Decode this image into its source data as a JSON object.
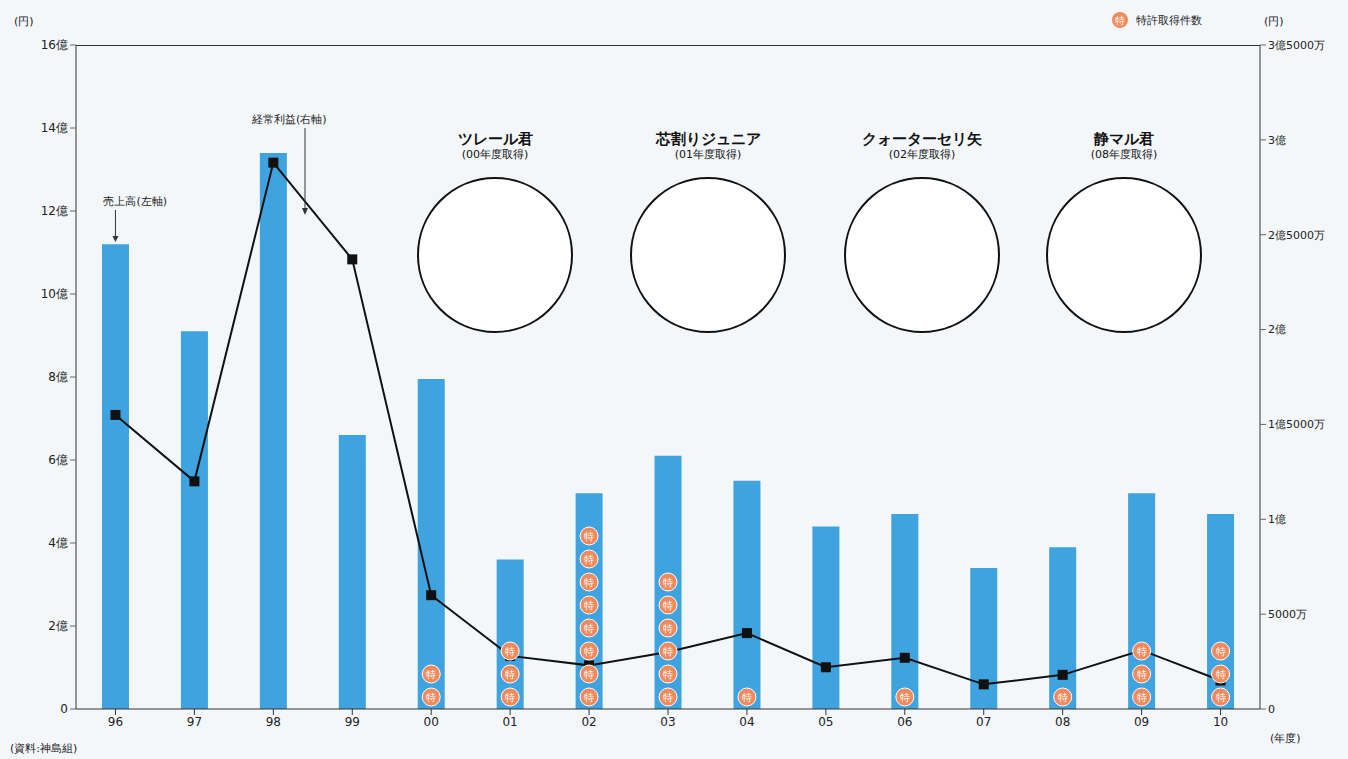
{
  "chart_data": {
    "type": "bar",
    "categories": [
      "96",
      "97",
      "98",
      "99",
      "00",
      "01",
      "02",
      "03",
      "04",
      "05",
      "06",
      "07",
      "08",
      "09",
      "10"
    ],
    "series": [
      {
        "name": "売上高(左軸)",
        "type": "bar",
        "color": "#3ea3de",
        "values": [
          1120000000,
          910000000,
          1340000000,
          660000000,
          795000000,
          360000000,
          520000000,
          610000000,
          550000000,
          440000000,
          470000000,
          340000000,
          390000000,
          520000000,
          470000000
        ]
      },
      {
        "name": "経常利益(右軸)",
        "type": "line",
        "axis": "y2",
        "color": "#111111",
        "marker": "square",
        "values": [
          155000000,
          120000000,
          288000000,
          237000000,
          60000000,
          28000000,
          23000000,
          30000000,
          40000000,
          22000000,
          27000000,
          13000000,
          18000000,
          31000000,
          15000000
        ]
      }
    ],
    "patents": {
      "name": "特許取得件数",
      "symbol": "特",
      "color": "#f08a5d",
      "values": [
        0,
        0,
        0,
        0,
        2,
        3,
        8,
        6,
        1,
        0,
        1,
        0,
        1,
        3,
        3
      ]
    },
    "products": [
      {
        "name": "ツレール君",
        "note": "(00年度取得)"
      },
      {
        "name": "芯割りジュニア",
        "note": "(01年度取得)"
      },
      {
        "name": "クォーターセリ矢",
        "note": "(02年度取得)"
      },
      {
        "name": "静マル君",
        "note": "(08年度取得)"
      }
    ],
    "ylim": [
      0,
      1600000000
    ],
    "yticks": [
      0,
      {
        "value": 200000000,
        "label": "2億"
      },
      {
        "value": 400000000,
        "label": "4億"
      },
      {
        "value": 600000000,
        "label": "6億"
      },
      {
        "value": 800000000,
        "label": "8億"
      },
      {
        "value": 1000000000,
        "label": "10億"
      },
      {
        "value": 1200000000,
        "label": "12億"
      },
      {
        "value": 1400000000,
        "label": "14億"
      },
      {
        "value": 1600000000,
        "label": "16億"
      }
    ],
    "y2lim": [
      0,
      350000000
    ],
    "y2ticks": [
      0,
      {
        "value": 50000000,
        "label": "5000万"
      },
      {
        "value": 100000000,
        "label": "1億"
      },
      {
        "value": 150000000,
        "label": "1億5000万"
      },
      {
        "value": 200000000,
        "label": "2億"
      },
      {
        "value": 250000000,
        "label": "2億5000万"
      },
      {
        "value": 300000000,
        "label": "3億"
      },
      {
        "value": 350000000,
        "label": "3億5000万"
      }
    ],
    "y_unit": "(円)",
    "y2_unit": "(円)",
    "x_label": "(年度)",
    "source": "(資料:神島組)",
    "legend": "top-right",
    "grid": false
  }
}
